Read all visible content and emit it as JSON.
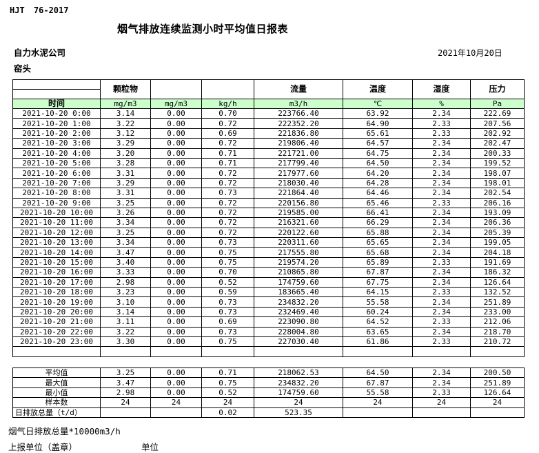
{
  "header": {
    "standard": "HJT 76-2017",
    "title": "烟气排放连续监测小时平均值日报表",
    "company": "自力水泥公司",
    "location": "窑头",
    "date": "2021年10月20日"
  },
  "table": {
    "col_groups": [
      "",
      "颗粒物",
      "",
      "",
      "流量",
      "温度",
      "湿度",
      "压力"
    ],
    "time_header": "时间",
    "units": [
      "mg/m3",
      "mg/m3",
      "kg/h",
      "m3/h",
      "℃",
      "%",
      "Pa"
    ],
    "rows": [
      {
        "time": "2021-10-20 0:00",
        "values": [
          "3.14",
          "0.00",
          "0.70",
          "223766.40",
          "63.92",
          "2.34",
          "222.69"
        ]
      },
      {
        "time": "2021-10-20 1:00",
        "values": [
          "3.22",
          "0.00",
          "0.72",
          "222352.20",
          "64.90",
          "2.33",
          "207.56"
        ]
      },
      {
        "time": "2021-10-20 2:00",
        "values": [
          "3.12",
          "0.00",
          "0.69",
          "221836.80",
          "65.61",
          "2.33",
          "202.92"
        ]
      },
      {
        "time": "2021-10-20 3:00",
        "values": [
          "3.29",
          "0.00",
          "0.72",
          "219806.40",
          "64.57",
          "2.34",
          "202.47"
        ]
      },
      {
        "time": "2021-10-20 4:00",
        "values": [
          "3.20",
          "0.00",
          "0.71",
          "221721.00",
          "64.75",
          "2.34",
          "200.33"
        ]
      },
      {
        "time": "2021-10-20 5:00",
        "values": [
          "3.28",
          "0.00",
          "0.71",
          "217799.40",
          "64.50",
          "2.34",
          "199.52"
        ]
      },
      {
        "time": "2021-10-20 6:00",
        "values": [
          "3.31",
          "0.00",
          "0.72",
          "217977.60",
          "64.20",
          "2.34",
          "198.07"
        ]
      },
      {
        "time": "2021-10-20 7:00",
        "values": [
          "3.29",
          "0.00",
          "0.72",
          "218030.40",
          "64.28",
          "2.34",
          "198.01"
        ]
      },
      {
        "time": "2021-10-20 8:00",
        "values": [
          "3.31",
          "0.00",
          "0.73",
          "221864.40",
          "64.46",
          "2.34",
          "202.54"
        ]
      },
      {
        "time": "2021-10-20 9:00",
        "values": [
          "3.25",
          "0.00",
          "0.72",
          "220156.80",
          "65.46",
          "2.33",
          "206.16"
        ]
      },
      {
        "time": "2021-10-20 10:00",
        "values": [
          "3.26",
          "0.00",
          "0.72",
          "219585.00",
          "66.41",
          "2.34",
          "193.09"
        ]
      },
      {
        "time": "2021-10-20 11:00",
        "values": [
          "3.34",
          "0.00",
          "0.72",
          "216321.60",
          "66.29",
          "2.34",
          "206.36"
        ]
      },
      {
        "time": "2021-10-20 12:00",
        "values": [
          "3.25",
          "0.00",
          "0.72",
          "220122.60",
          "65.88",
          "2.34",
          "205.39"
        ]
      },
      {
        "time": "2021-10-20 13:00",
        "values": [
          "3.34",
          "0.00",
          "0.73",
          "220311.60",
          "65.65",
          "2.34",
          "199.05"
        ]
      },
      {
        "time": "2021-10-20 14:00",
        "values": [
          "3.47",
          "0.00",
          "0.75",
          "217555.80",
          "65.68",
          "2.34",
          "204.18"
        ]
      },
      {
        "time": "2021-10-20 15:00",
        "values": [
          "3.40",
          "0.00",
          "0.75",
          "219574.20",
          "65.89",
          "2.33",
          "191.69"
        ]
      },
      {
        "time": "2021-10-20 16:00",
        "values": [
          "3.33",
          "0.00",
          "0.70",
          "210865.80",
          "67.87",
          "2.34",
          "186.32"
        ]
      },
      {
        "time": "2021-10-20 17:00",
        "values": [
          "2.98",
          "0.00",
          "0.52",
          "174759.60",
          "67.75",
          "2.34",
          "126.64"
        ]
      },
      {
        "time": "2021-10-20 18:00",
        "values": [
          "3.23",
          "0.00",
          "0.59",
          "183665.40",
          "64.15",
          "2.33",
          "132.52"
        ]
      },
      {
        "time": "2021-10-20 19:00",
        "values": [
          "3.10",
          "0.00",
          "0.73",
          "234832.20",
          "55.58",
          "2.34",
          "251.89"
        ]
      },
      {
        "time": "2021-10-20 20:00",
        "values": [
          "3.14",
          "0.00",
          "0.73",
          "232469.40",
          "60.24",
          "2.34",
          "233.00"
        ]
      },
      {
        "time": "2021-10-20 21:00",
        "values": [
          "3.11",
          "0.00",
          "0.69",
          "223090.80",
          "64.52",
          "2.33",
          "212.06"
        ]
      },
      {
        "time": "2021-10-20 22:00",
        "values": [
          "3.22",
          "0.00",
          "0.73",
          "228004.80",
          "63.65",
          "2.34",
          "218.70"
        ]
      },
      {
        "time": "2021-10-20 23:00",
        "values": [
          "3.30",
          "0.00",
          "0.75",
          "227030.40",
          "61.86",
          "2.33",
          "210.72"
        ]
      }
    ],
    "summary": [
      {
        "label": "平均值",
        "values": [
          "3.25",
          "0.00",
          "0.71",
          "218062.53",
          "64.50",
          "2.34",
          "200.50"
        ]
      },
      {
        "label": "最大值",
        "values": [
          "3.47",
          "0.00",
          "0.75",
          "234832.20",
          "67.87",
          "2.34",
          "251.89"
        ]
      },
      {
        "label": "最小值",
        "values": [
          "2.98",
          "0.00",
          "0.52",
          "174759.60",
          "55.58",
          "2.33",
          "126.64"
        ]
      },
      {
        "label": "样本数",
        "values": [
          "24",
          "24",
          "24",
          "24",
          "24",
          "24",
          "24"
        ]
      },
      {
        "label": "日排放总量（t/d）",
        "values": [
          "",
          "",
          "0.02",
          "523.35",
          "",
          "",
          ""
        ]
      }
    ]
  },
  "footer": {
    "note": "烟气日排放总量*10000m3/h",
    "report_unit": "上报单位（盖章）",
    "unit_label": "单位"
  },
  "colors": {
    "header_green": "#ccffcc",
    "border": "#000000",
    "background": "#ffffff"
  }
}
